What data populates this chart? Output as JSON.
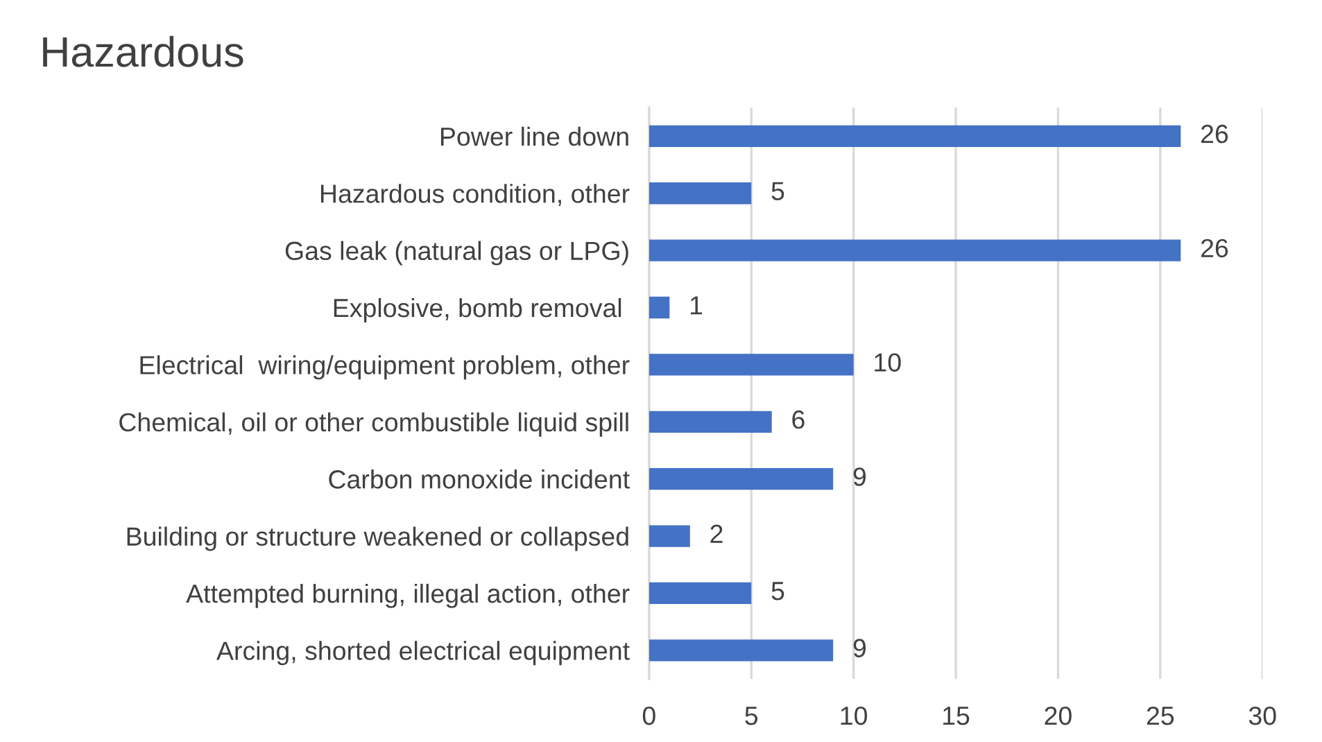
{
  "chart_data": {
    "type": "bar",
    "orientation": "horizontal",
    "title": "Hazardous",
    "categories": [
      "Power line down",
      "Hazardous condition, other",
      "Gas leak (natural gas or LPG)",
      "Explosive, bomb removal ",
      "Electrical  wiring/equipment problem, other",
      "Chemical, oil or other combustible liquid spill",
      "Carbon monoxide incident",
      "Building or structure weakened or collapsed",
      "Attempted burning, illegal action, other",
      "Arcing, shorted electrical equipment"
    ],
    "values": [
      26,
      5,
      26,
      1,
      10,
      6,
      9,
      2,
      5,
      9
    ],
    "color": "#4472c4",
    "xlim": [
      0,
      30
    ],
    "xticks": [
      0,
      5,
      10,
      15,
      20,
      25,
      30
    ],
    "grid": "x",
    "data_labels": true,
    "legend": false
  }
}
